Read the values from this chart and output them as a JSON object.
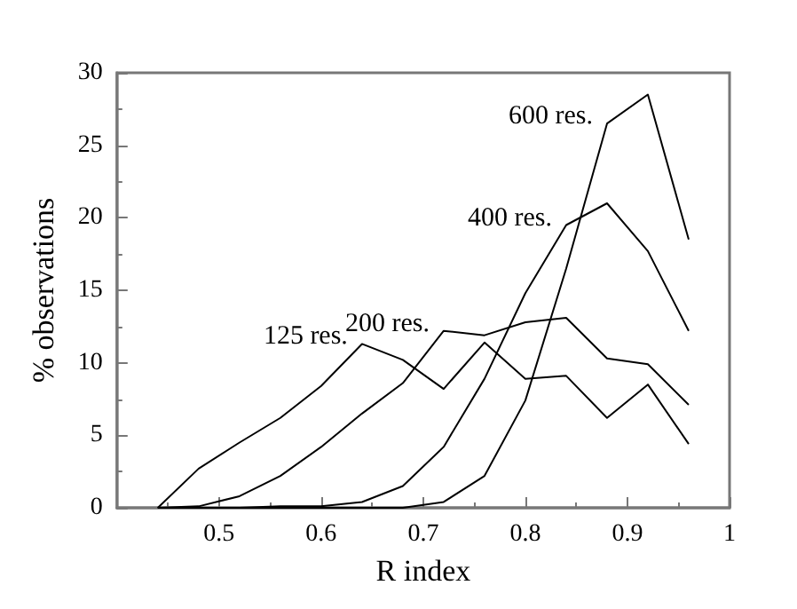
{
  "chart_data": {
    "type": "line",
    "xlabel": "R index",
    "ylabel": "% observations",
    "x": [
      0.44,
      0.48,
      0.52,
      0.56,
      0.6,
      0.64,
      0.68,
      0.72,
      0.76,
      0.8,
      0.84,
      0.88,
      0.92,
      0.96
    ],
    "series": [
      {
        "name": "125 res.",
        "color": "#000000",
        "values": [
          0,
          2.7,
          4.5,
          6.2,
          8.4,
          11.3,
          10.2,
          8.2,
          11.4,
          8.9,
          9.1,
          6.2,
          8.5,
          4.4
        ]
      },
      {
        "name": "200 res.",
        "color": "#000000",
        "values": [
          0,
          0.1,
          0.8,
          2.2,
          4.2,
          6.5,
          8.6,
          12.2,
          11.9,
          12.8,
          13.1,
          10.3,
          9.9,
          7.1
        ]
      },
      {
        "name": "400 res.",
        "color": "#000000",
        "values": [
          0,
          0,
          0,
          0.1,
          0.1,
          0.4,
          1.5,
          4.2,
          8.9,
          14.8,
          19.5,
          21.0,
          17.7,
          12.2
        ]
      },
      {
        "name": "600 res.",
        "color": "#000000",
        "values": [
          0,
          0,
          0,
          0,
          0,
          0,
          0,
          0.4,
          2.2,
          7.4,
          16.5,
          26.5,
          28.5,
          18.5
        ]
      }
    ],
    "xlim": [
      0.4,
      1
    ],
    "xticks": [
      0.5,
      0.6,
      0.7,
      0.8,
      0.9,
      1
    ],
    "ylim": [
      0,
      30
    ],
    "yticks": [
      0,
      5,
      10,
      15,
      20,
      25,
      30
    ],
    "grid": false,
    "legend": false,
    "marker": "none",
    "line_style": "solid"
  }
}
